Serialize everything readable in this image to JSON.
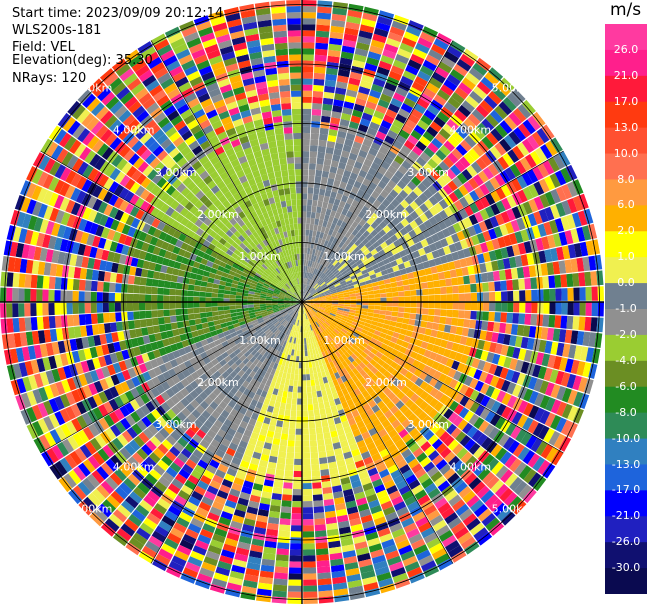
{
  "header": {
    "start_time": "Start time: 2023/09/09 20:12:14",
    "instrument": "WLS200s-181",
    "field": "Field: VEL",
    "elevation": "Elevation(deg): 35.30",
    "nrays": "NRays: 120"
  },
  "colorbar": {
    "unit": "m/s",
    "ticks": [
      "26.0",
      "21.0",
      "17.0",
      "13.0",
      "10.0",
      "8.0",
      "6.0",
      "2.0",
      "1.0",
      "0.0",
      "-1.0",
      "-2.0",
      "-4.0",
      "-6.0",
      "-8.0",
      "-10.0",
      "-13.0",
      "-17.0",
      "-21.0",
      "-26.0",
      "-30.0"
    ],
    "colors": [
      "#ff3aa0",
      "#ff1f8c",
      "#ff1a3a",
      "#ff3a10",
      "#ff5030",
      "#ff7050",
      "#ff9a40",
      "#ffb000",
      "#ffff00",
      "#f0f050",
      "#708090",
      "#909090",
      "#9acd32",
      "#6b8e23",
      "#228b22",
      "#2e8b57",
      "#3080c0",
      "#1e64dc",
      "#0000ff",
      "#2020c0",
      "#101070",
      "#0a0a50"
    ]
  },
  "chart_data": {
    "type": "heatmap",
    "projection": "polar PPI scan",
    "field": "VEL",
    "units": "m/s",
    "nrays": 120,
    "range_ring_labels": [
      "1.00km",
      "2.00km",
      "3.00km",
      "4.00km",
      "5.00km"
    ],
    "vmin": -30.0,
    "vmax": 26.0,
    "sectors": [
      {
        "azimuth_from": 0,
        "azimuth_to": 40,
        "near_range_velocity_ms": -2.0
      },
      {
        "azimuth_from": 40,
        "azimuth_to": 75,
        "near_range_velocity_ms": 0.0
      },
      {
        "azimuth_from": 75,
        "azimuth_to": 160,
        "near_range_velocity_ms": 8.0
      },
      {
        "azimuth_from": 160,
        "azimuth_to": 200,
        "near_range_velocity_ms": 2.0
      },
      {
        "azimuth_from": 200,
        "azimuth_to": 250,
        "near_range_velocity_ms": -2.0
      },
      {
        "azimuth_from": 250,
        "azimuth_to": 300,
        "near_range_velocity_ms": -10.0
      },
      {
        "azimuth_from": 300,
        "azimuth_to": 360,
        "near_range_velocity_ms": -6.0
      }
    ],
    "noise_beyond_km": 3.0
  }
}
